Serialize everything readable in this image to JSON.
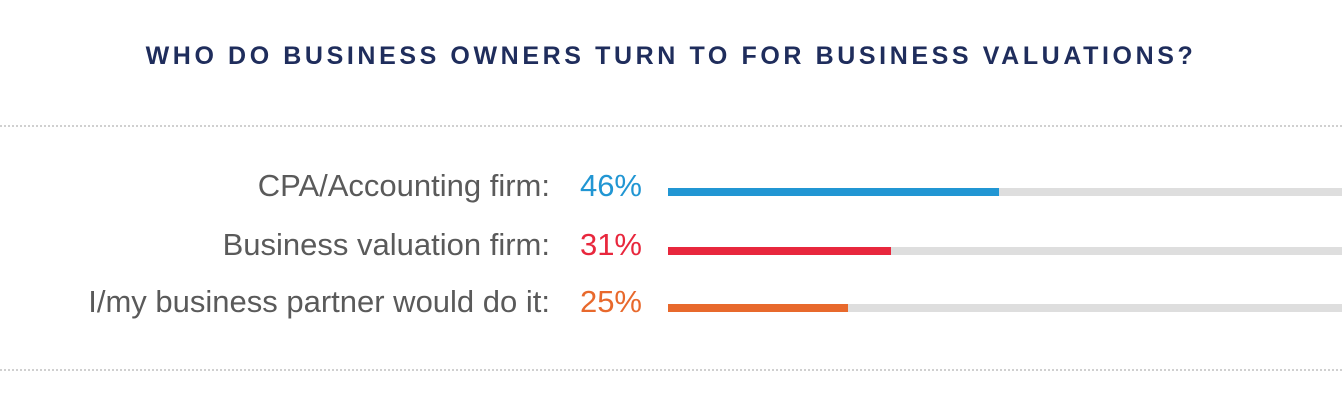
{
  "chart_data": {
    "type": "bar",
    "orientation": "horizontal",
    "title": "WHO DO BUSINESS OWNERS TURN TO FOR BUSINESS VALUATIONS?",
    "categories": [
      "CPA/Accounting firm:",
      "Business valuation firm:",
      "I/my business partner would do it:"
    ],
    "values": [
      46,
      31,
      25
    ],
    "value_labels": [
      "46%",
      "31%",
      "25%"
    ],
    "colors": [
      "#2196d3",
      "#e8273d",
      "#e8692c"
    ],
    "track_color": "#dedede",
    "xlim": [
      0,
      100
    ],
    "grid": false
  }
}
